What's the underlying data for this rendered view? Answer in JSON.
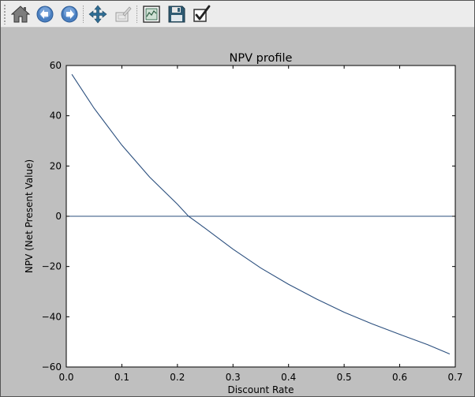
{
  "toolbar": {
    "buttons": [
      {
        "name": "home",
        "icon": "home-icon"
      },
      {
        "name": "back",
        "icon": "back-arrow-icon"
      },
      {
        "name": "forward",
        "icon": "forward-arrow-icon"
      },
      {
        "name": "pan",
        "icon": "pan-move-icon"
      },
      {
        "name": "zoom",
        "icon": "zoom-rectangle-icon"
      },
      {
        "name": "subplots",
        "icon": "configure-subplots-icon"
      },
      {
        "name": "save",
        "icon": "save-floppy-icon"
      },
      {
        "name": "edit-axes",
        "icon": "edit-check-icon"
      }
    ]
  },
  "colors": {
    "line": "#2b4f7e",
    "figure_background": "#bfbfbf",
    "axes_background": "#ffffff"
  },
  "chart_data": {
    "type": "line",
    "title": "NPV profile",
    "xlabel": "Discount Rate",
    "ylabel": "NPV (Net Present Value)",
    "xlim": [
      0.0,
      0.7
    ],
    "ylim": [
      -60,
      60
    ],
    "xticks": [
      "0.0",
      "0.1",
      "0.2",
      "0.3",
      "0.4",
      "0.5",
      "0.6",
      "0.7"
    ],
    "yticks": [
      "60",
      "40",
      "20",
      "0",
      "−20",
      "−40",
      "−60"
    ],
    "grid": false,
    "series": [
      {
        "x": [
          0.01,
          0.05,
          0.1,
          0.15,
          0.2,
          0.22,
          0.25,
          0.3,
          0.35,
          0.4,
          0.45,
          0.5,
          0.55,
          0.6,
          0.65,
          0.69
        ],
        "values": [
          56.5,
          43.0,
          28.3,
          15.6,
          4.8,
          0.0,
          -4.8,
          -13.1,
          -20.6,
          -27.1,
          -32.9,
          -38.2,
          -42.8,
          -47.0,
          -51.1,
          -54.8
        ]
      },
      {
        "x": [
          0.0,
          0.7
        ],
        "values": [
          0,
          0
        ]
      }
    ]
  }
}
